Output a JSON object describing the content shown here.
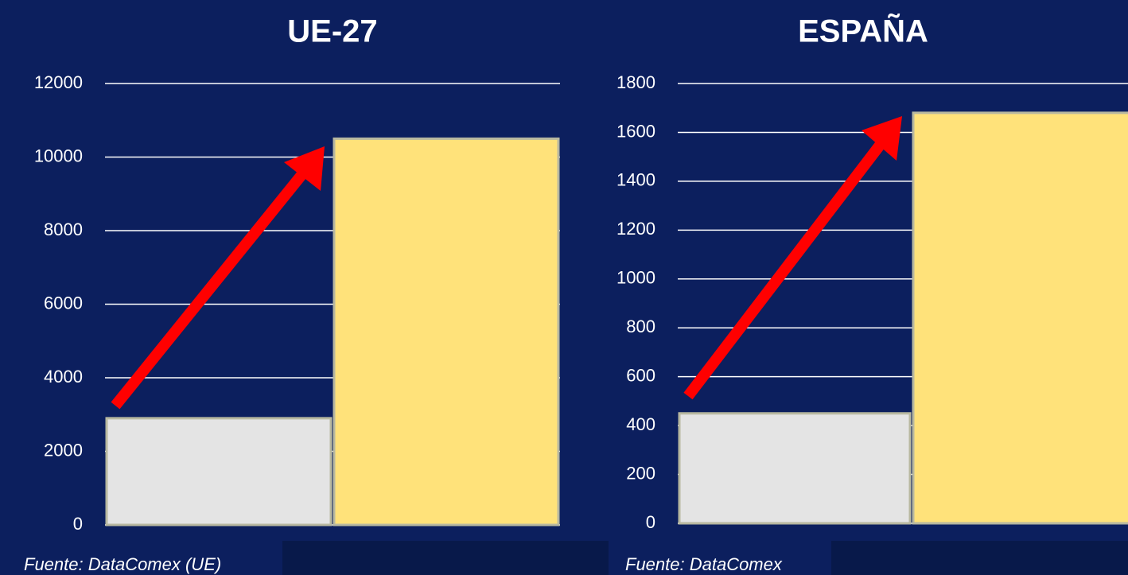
{
  "chart_data": [
    {
      "type": "bar",
      "title": "UE-27",
      "categories": [
        null,
        null
      ],
      "values": [
        2900,
        10500
      ],
      "colors": [
        "#e4e4e4",
        "#ffe27a"
      ],
      "ylim": [
        0,
        12000
      ],
      "yticks": [
        0,
        2000,
        4000,
        6000,
        8000,
        10000,
        12000
      ],
      "grid": true,
      "source": "Fuente: DataComex (UE)"
    },
    {
      "type": "bar",
      "title": "ESPAÑA",
      "categories": [
        null,
        null
      ],
      "values": [
        450,
        1680
      ],
      "colors": [
        "#e4e4e4",
        "#ffe27a"
      ],
      "ylim": [
        0,
        1800
      ],
      "yticks": [
        0,
        200,
        400,
        600,
        800,
        1000,
        1200,
        1400,
        1600,
        1800
      ],
      "grid": true,
      "source": "Fuente: DataComex"
    }
  ]
}
